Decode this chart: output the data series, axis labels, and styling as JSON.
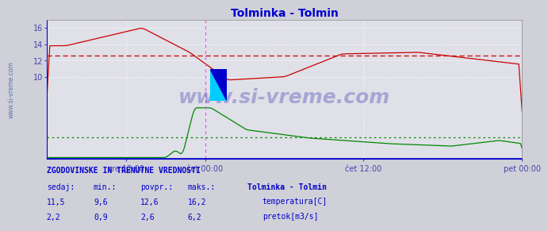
{
  "title": "Tolminka - Tolmin",
  "title_color": "#0000cc",
  "bg_color": "#d0d0d8",
  "plot_bg_color": "#e0e0e8",
  "grid_color": "#ffffff",
  "watermark_text": "www.si-vreme.com",
  "watermark_color": "#2222aa",
  "watermark_alpha": 0.3,
  "side_text": "www.si-vreme.com",
  "side_text_color": "#4466aa",
  "xlabel_color": "#4444aa",
  "ylabel_color": "#4444aa",
  "x_tick_labels": [
    "sre 12:00",
    "čet 00:00",
    "čet 12:00",
    "pet 00:00"
  ],
  "x_tick_positions": [
    0.1667,
    0.3333,
    0.6667,
    1.0
  ],
  "ylim": [
    0,
    17
  ],
  "yticks": [
    10,
    12,
    14,
    16
  ],
  "temp_color": "#cc0000",
  "flow_color": "#008800",
  "temp_avg": 12.6,
  "flow_avg": 2.6,
  "vline_color": "#ff44ff",
  "hline_temp_color": "#cc0000",
  "hline_flow_color": "#008800",
  "bottom_line_color": "#0000cc",
  "spine_color": "#0000cc",
  "legend_title": "Tolminka - Tolmin",
  "legend_color": "#0000cc",
  "stats_header": "ZGODOVINSKE IN TRENUTNE VREDNOSTI",
  "stats_labels": [
    "temperatura[C]",
    "pretok[m3/s]"
  ],
  "logo_yellow": "#ffff00",
  "logo_cyan": "#00ccff",
  "logo_blue": "#0000cc"
}
